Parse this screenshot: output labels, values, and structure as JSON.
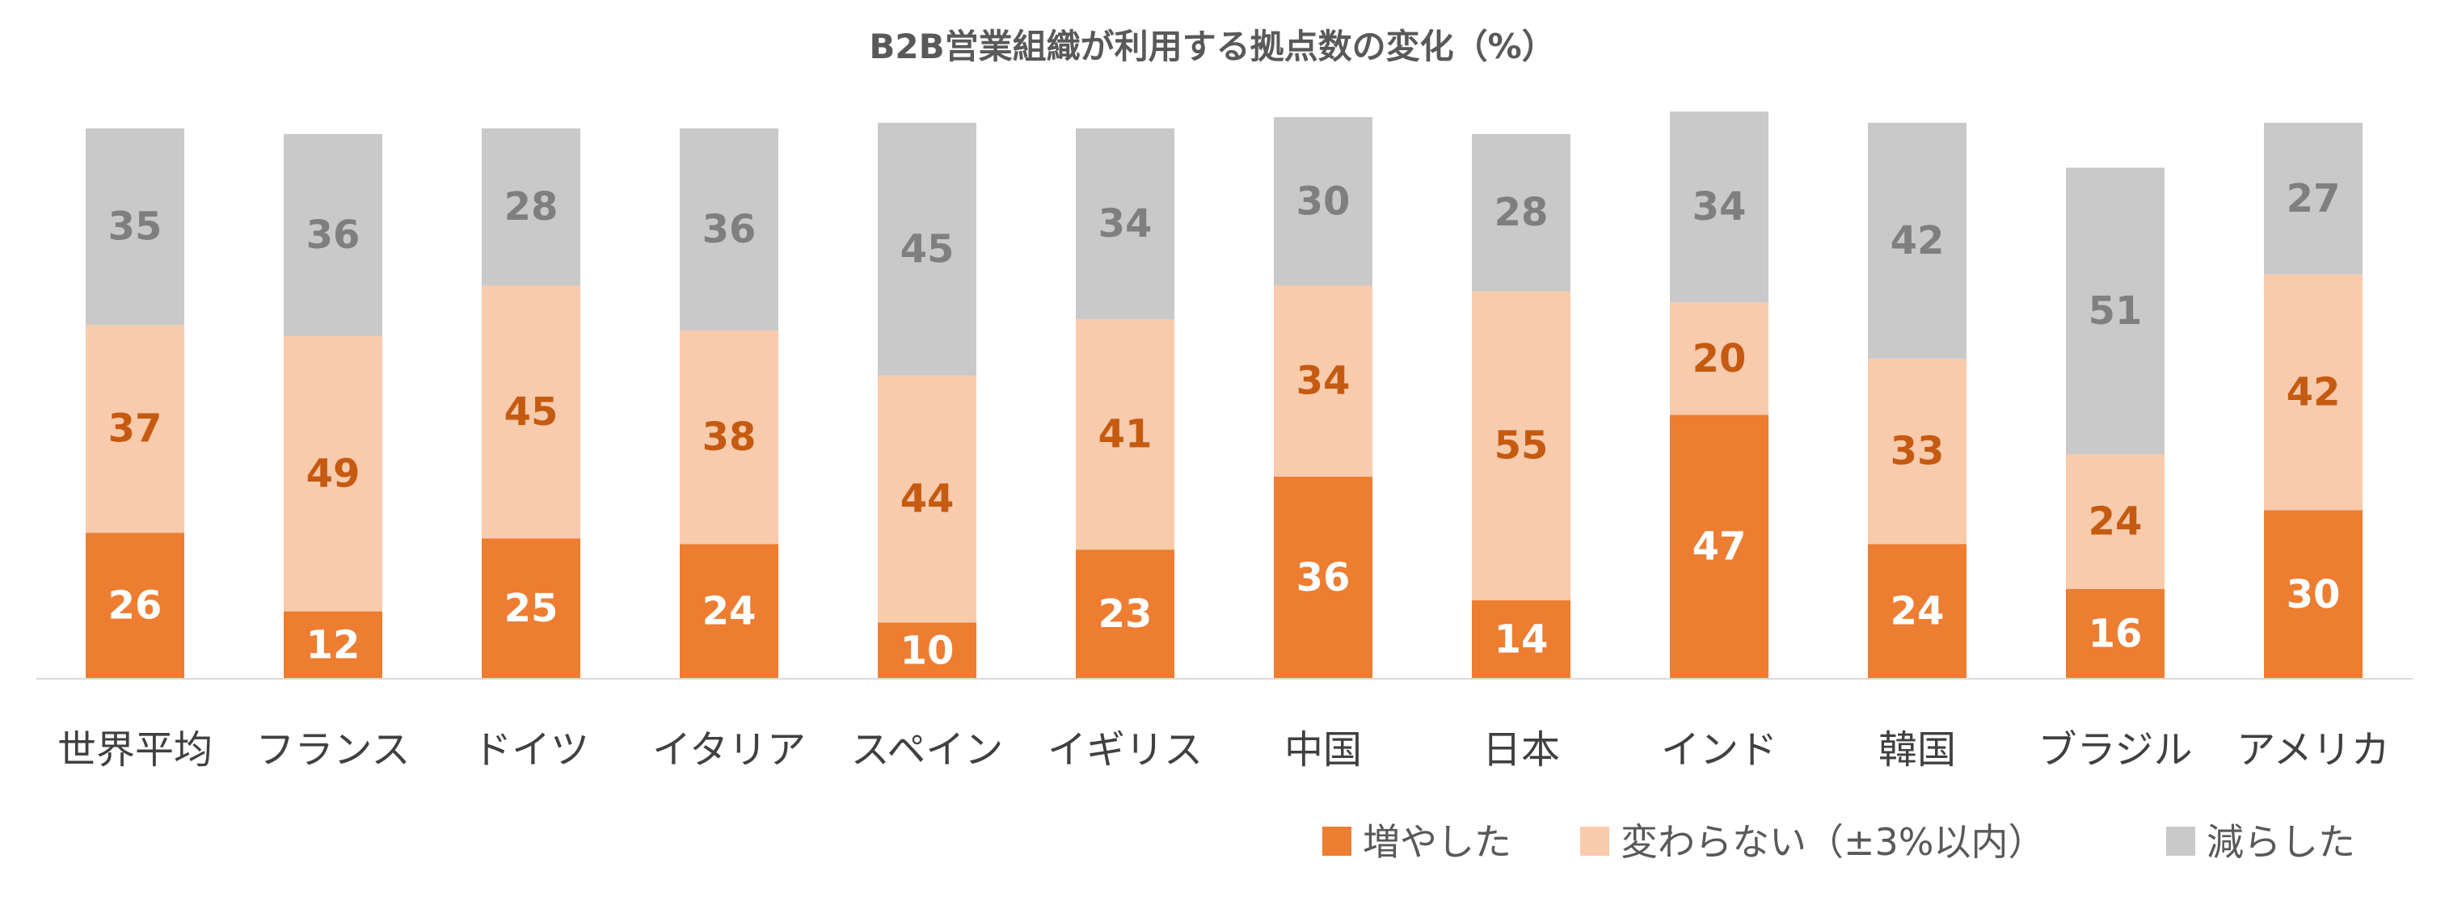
{
  "colors": {
    "increase": "#ED7D31",
    "unchanged": "#F8CBAD",
    "decrease": "#C9C9C9",
    "label_on_increase": "#FFFFFF",
    "label_on_unchanged": "#C55A11",
    "label_on_decrease": "#7F7F7F",
    "axis": "#D9D9D9"
  },
  "chart_data": {
    "type": "bar",
    "stacked": true,
    "title": "B2B営業組織が利用する拠点数の変化（%）",
    "categories": [
      "世界平均",
      "フランス",
      "ドイツ",
      "イタリア",
      "スペイン",
      "イギリス",
      "中国",
      "日本",
      "インド",
      "韓国",
      "ブラジル",
      "アメリカ"
    ],
    "series": [
      {
        "name": "増やした",
        "values": [
          26,
          12,
          25,
          24,
          10,
          23,
          36,
          14,
          47,
          24,
          16,
          30
        ]
      },
      {
        "name": "変わらない（±3%以内）",
        "values": [
          37,
          49,
          45,
          38,
          44,
          41,
          34,
          55,
          20,
          33,
          24,
          42
        ]
      },
      {
        "name": "減らした",
        "values": [
          35,
          36,
          28,
          36,
          45,
          34,
          30,
          28,
          34,
          42,
          51,
          27
        ]
      }
    ],
    "ylim": [
      0,
      100
    ],
    "grid": false,
    "legend_position": "bottom-right",
    "data_labels": true
  }
}
